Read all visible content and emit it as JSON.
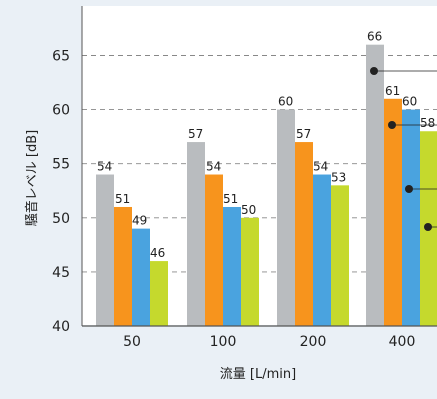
{
  "chart_data": {
    "type": "bar",
    "categories": [
      "50",
      "100",
      "200",
      "400"
    ],
    "series": [
      {
        "color": "#b9bcbf",
        "values": [
          54,
          57,
          60,
          66
        ]
      },
      {
        "color": "#f7941d",
        "values": [
          51,
          54,
          57,
          61
        ]
      },
      {
        "color": "#4aa3df",
        "values": [
          49,
          51,
          54,
          60
        ]
      },
      {
        "color": "#c5d92d",
        "values": [
          46,
          50,
          53,
          58
        ]
      }
    ],
    "xlabel": "流量 [L/min]",
    "ylabel": "騒音レベル [dB]",
    "ylim": [
      40,
      68
    ],
    "yticks": [
      40,
      45,
      50,
      55,
      60,
      65
    ],
    "gridlines": "dashed"
  },
  "colors": {
    "background": "#eaf0f6",
    "plot_area": "#ffffff",
    "axis": "#555555",
    "grid": "#888888",
    "callout": "#222222"
  }
}
